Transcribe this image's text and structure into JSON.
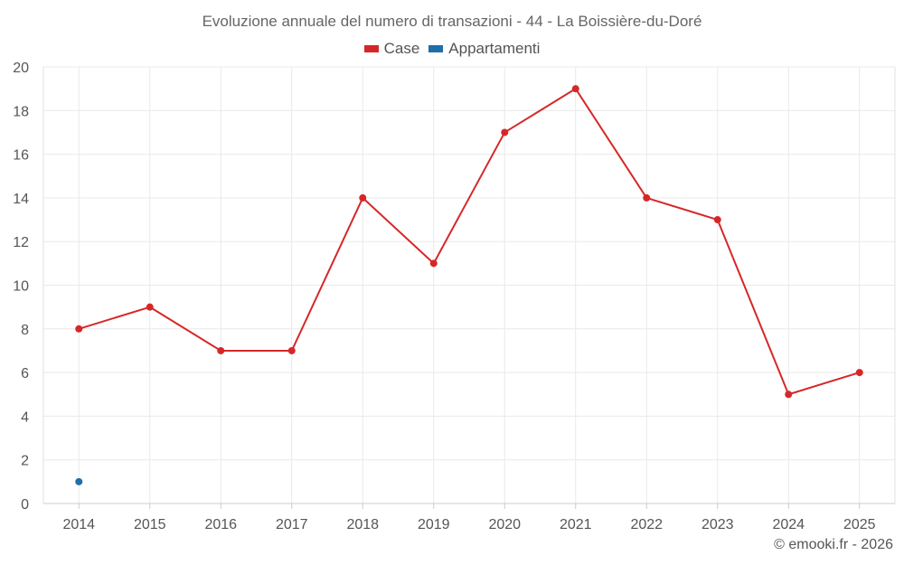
{
  "chart_data": {
    "type": "line",
    "title": "Evoluzione annuale del numero di transazioni - 44 - La Boissière-du-Doré",
    "xlabel": "",
    "ylabel": "",
    "categories": [
      "2014",
      "2015",
      "2016",
      "2017",
      "2018",
      "2019",
      "2020",
      "2021",
      "2022",
      "2023",
      "2024",
      "2025"
    ],
    "ylim": [
      0,
      20
    ],
    "yticks": [
      "0",
      "2",
      "4",
      "6",
      "8",
      "10",
      "12",
      "14",
      "16",
      "18",
      "20"
    ],
    "grid": true,
    "legend_position": "top-center",
    "series": [
      {
        "name": "Case",
        "color": "#d62728",
        "values": [
          8,
          9,
          7,
          7,
          14,
          11,
          17,
          19,
          14,
          13,
          5,
          6
        ]
      },
      {
        "name": "Appartamenti",
        "color": "#1f6fa8",
        "values": [
          1,
          null,
          null,
          null,
          null,
          null,
          null,
          null,
          null,
          null,
          null,
          null
        ]
      }
    ]
  },
  "credit": "© emooki.fr - 2026"
}
